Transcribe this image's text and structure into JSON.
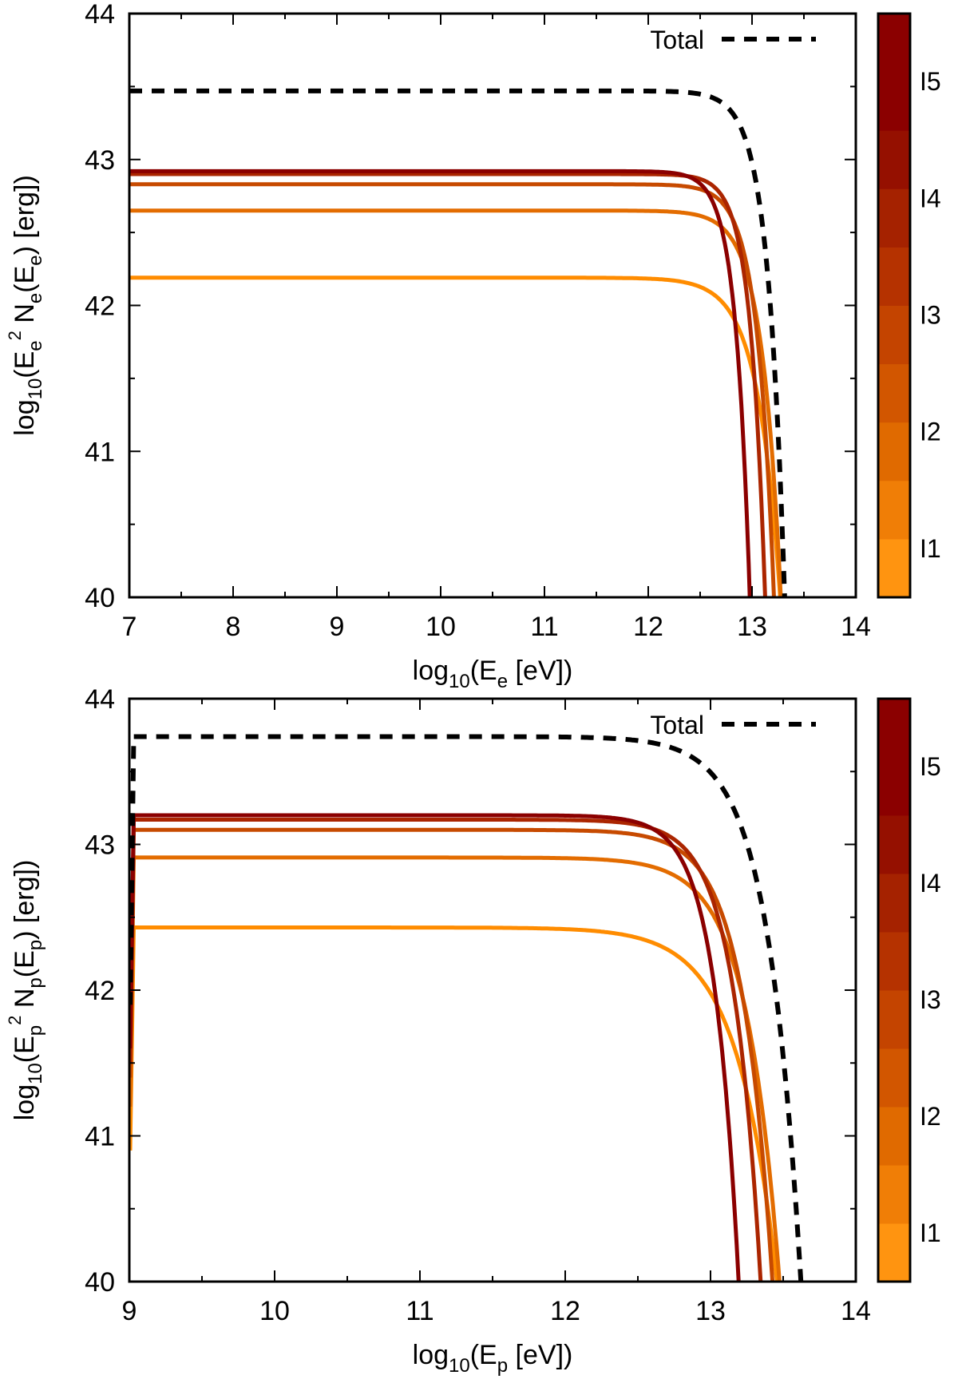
{
  "colors": {
    "I1": "#ff8c00",
    "I2": "#e36c00",
    "I3": "#c74a00",
    "I4": "#ab2500",
    "I5": "#8b0000",
    "total": "#000000"
  },
  "colorbar": {
    "labels": [
      "I1",
      "I2",
      "I3",
      "I4",
      "I5"
    ],
    "bands": [
      "#ff9410",
      "#f07e06",
      "#e06a00",
      "#d25600",
      "#c44400",
      "#b53200",
      "#a52200",
      "#951000",
      "#8b0000",
      "#8b0000"
    ]
  },
  "chart_data": [
    {
      "type": "line",
      "panel": "electrons",
      "xlabel": {
        "pre": "log",
        "sub1": "10",
        "mid": "(E",
        "sub2": "e",
        "post": " [eV])"
      },
      "ylabel": {
        "pre": "log",
        "sub1": "10",
        "a": "(E",
        "sub2": "e",
        "sup": "2",
        "b": " N",
        "sub3": "e",
        "c": "(E",
        "sub4": "e",
        "d": ") [erg])"
      },
      "xlim": [
        7,
        14
      ],
      "ylim": [
        40,
        44
      ],
      "xticks": [
        "7",
        "8",
        "9",
        "10",
        "11",
        "12",
        "13",
        "14"
      ],
      "yticks": [
        "40",
        "41",
        "42",
        "43",
        "44"
      ],
      "legend": {
        "label": "Total",
        "position": "top-right"
      },
      "series": [
        {
          "name": "I1",
          "plateau": 42.19,
          "cutoff": 12.92,
          "shape": 2.0,
          "minor": 0.0
        },
        {
          "name": "I2",
          "plateau": 42.65,
          "cutoff": 12.95,
          "shape": 2.4,
          "minor": 0.0
        },
        {
          "name": "I3",
          "plateau": 42.83,
          "cutoff": 12.91,
          "shape": 2.7,
          "minor": 0.0
        },
        {
          "name": "I4",
          "plateau": 42.9,
          "cutoff": 12.86,
          "shape": 3.1,
          "minor": 0.0
        },
        {
          "name": "I5",
          "plateau": 42.92,
          "cutoff": 12.72,
          "shape": 3.2,
          "minor": 0.0
        },
        {
          "name": "Total",
          "plateau": 43.47,
          "cutoff": 12.98,
          "shape": 2.7,
          "minor": 0.0
        }
      ]
    },
    {
      "type": "line",
      "panel": "protons",
      "xlabel": {
        "pre": "log",
        "sub1": "10",
        "mid": "(E",
        "sub2": "p",
        "post": " [eV])"
      },
      "ylabel": {
        "pre": "log",
        "sub1": "10",
        "a": "(E",
        "sub2": "p",
        "sup": "2",
        "b": " N",
        "sub3": "p",
        "c": "(E",
        "sub4": "p",
        "d": ") [erg])"
      },
      "xlim": [
        9,
        14
      ],
      "ylim": [
        40,
        44
      ],
      "xstart": 9.03,
      "xticks": [
        "9",
        "10",
        "11",
        "12",
        "13",
        "14"
      ],
      "yticks": [
        "40",
        "41",
        "42",
        "43",
        "44"
      ],
      "legend": {
        "label": "Total",
        "position": "top-right"
      },
      "series": [
        {
          "name": "I1",
          "plateau": 42.43,
          "cutoff": 12.99,
          "shape": 1.6,
          "minor": 40.9
        },
        {
          "name": "I2",
          "plateau": 42.91,
          "cutoff": 13.04,
          "shape": 1.9,
          "minor": 41.2
        },
        {
          "name": "I3",
          "plateau": 43.1,
          "cutoff": 13.02,
          "shape": 2.1,
          "minor": 41.4
        },
        {
          "name": "I4",
          "plateau": 43.17,
          "cutoff": 12.97,
          "shape": 2.3,
          "minor": 41.5
        },
        {
          "name": "I5",
          "plateau": 43.2,
          "cutoff": 12.86,
          "shape": 2.6,
          "minor": 41.6
        },
        {
          "name": "Total",
          "plateau": 43.74,
          "cutoff": 13.13,
          "shape": 1.9,
          "minor": 41.9
        }
      ]
    }
  ]
}
